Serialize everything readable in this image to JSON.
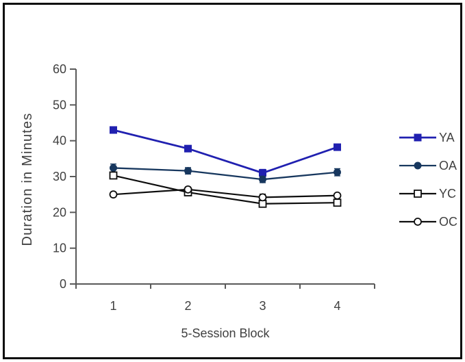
{
  "frame": {
    "border_color": "#0a0a0a",
    "background": "#ffffff"
  },
  "chart_data": {
    "type": "line",
    "title": "",
    "xlabel": "5-Session Block",
    "ylabel": "Duration in Minutes",
    "x_categories": [
      "1",
      "2",
      "3",
      "4"
    ],
    "ylim": [
      0,
      60
    ],
    "yticks": [
      0,
      10,
      20,
      30,
      40,
      50,
      60
    ],
    "grid": false,
    "legend_position": "right",
    "error_bars": true,
    "axis_color": "#595959",
    "text_color": "#404040",
    "series": [
      {
        "name": "YA",
        "color": "#2020b0",
        "marker": "filled-square",
        "line_width": 2.8,
        "values": [
          43.0,
          37.8,
          31.0,
          38.2
        ],
        "errors": [
          0.8,
          0.6,
          1.0,
          0.7
        ]
      },
      {
        "name": "OA",
        "color": "#17375e",
        "marker": "filled-circle",
        "line_width": 2.3,
        "values": [
          32.4,
          31.6,
          29.2,
          31.2
        ],
        "errors": [
          1.1,
          0.9,
          0.9,
          1.0
        ]
      },
      {
        "name": "YC",
        "color": "#0d0d0d",
        "marker": "open-square",
        "line_width": 2.2,
        "values": [
          30.3,
          25.6,
          22.4,
          22.7
        ],
        "errors": [
          0.9,
          1.0,
          0.9,
          0.7
        ]
      },
      {
        "name": "OC",
        "color": "#0d0d0d",
        "marker": "open-circle",
        "line_width": 2.2,
        "values": [
          25.0,
          26.4,
          24.2,
          24.7
        ],
        "errors": [
          0.7,
          0.7,
          0.9,
          0.6
        ]
      }
    ]
  }
}
